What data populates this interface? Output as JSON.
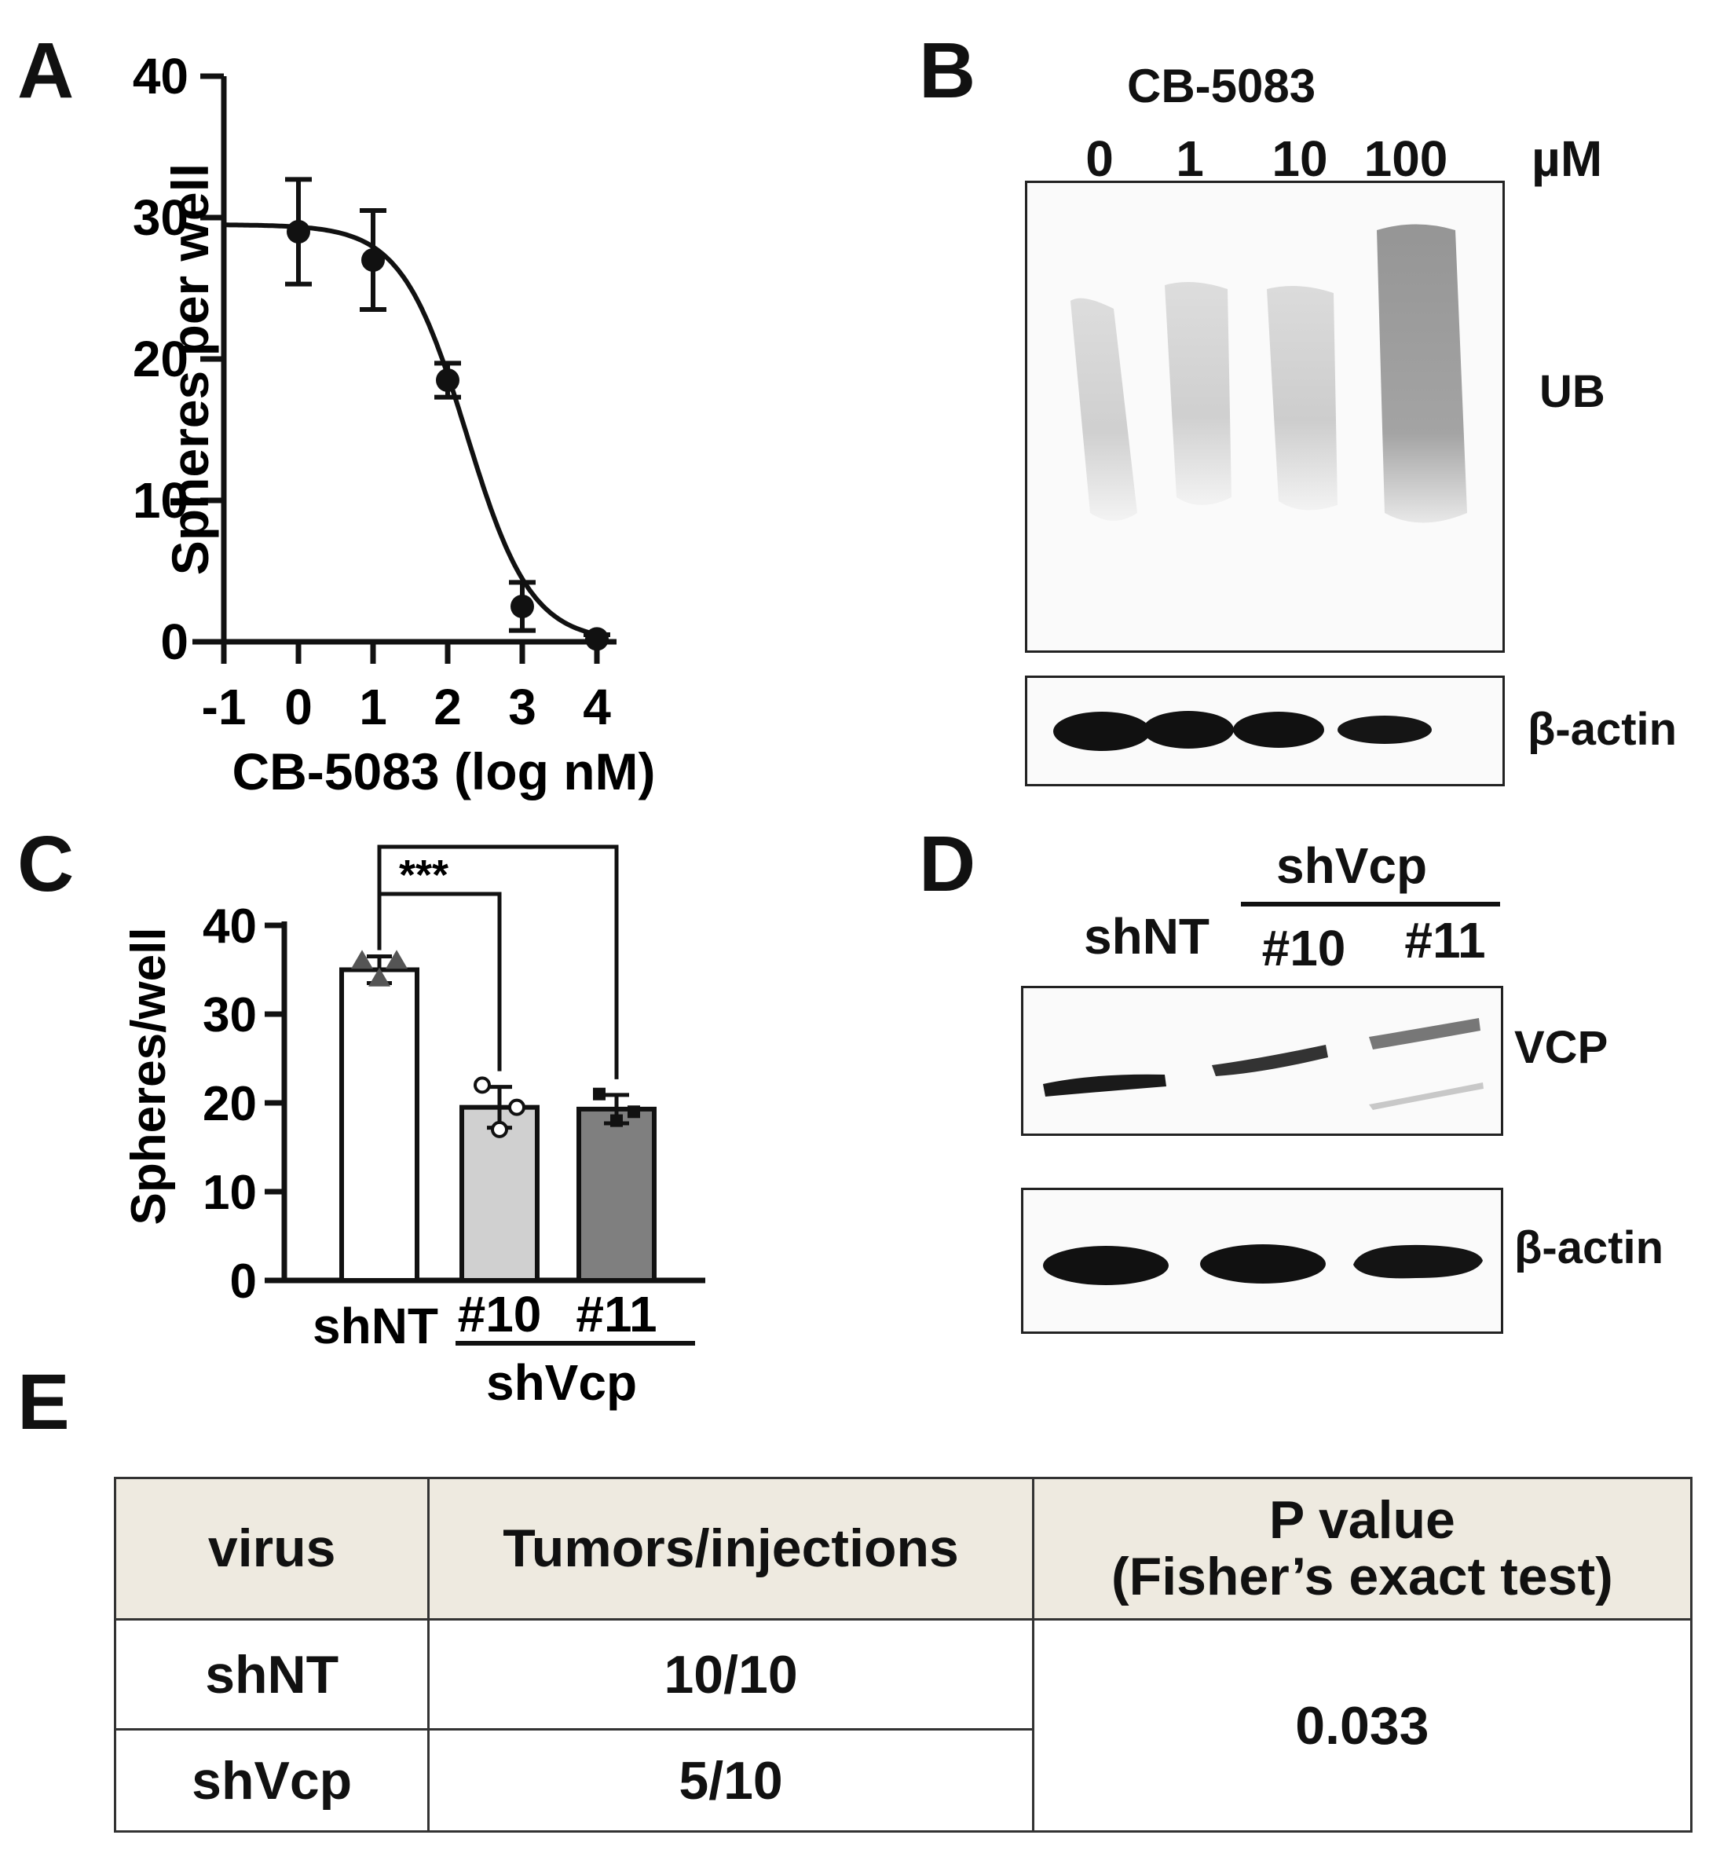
{
  "panels": {
    "a": "A",
    "b": "B",
    "c": "C",
    "d": "D",
    "e": "E"
  },
  "panel_b": {
    "drug": "CB-5083",
    "doses": [
      "0",
      "1",
      "10",
      "100"
    ],
    "unit": "µM",
    "band_labels": [
      "UB",
      "β-actin"
    ]
  },
  "panel_d": {
    "group_label": "shVcp",
    "lanes": [
      "shNT",
      "#10",
      "#11"
    ],
    "band_labels": [
      "VCP",
      "β-actin"
    ]
  },
  "table": {
    "headers": [
      "virus",
      "Tumors/injections",
      "P value",
      "(Fisher’s exact test)"
    ],
    "rows": [
      {
        "virus": "shNT",
        "ratio": "10/10"
      },
      {
        "virus": "shVcp",
        "ratio": "5/10"
      }
    ],
    "p_value": "0.033"
  },
  "chart_data": [
    {
      "type": "scatter",
      "panel": "A",
      "title": "",
      "xlabel": "CB-5083 (log nM)",
      "ylabel": "Spheres per well",
      "xlim": [
        -1,
        4
      ],
      "ylim": [
        0,
        40
      ],
      "xticks": [
        "-1",
        "0",
        "1",
        "2",
        "3",
        "4"
      ],
      "yticks": [
        "0",
        "10",
        "20",
        "30",
        "40"
      ],
      "points": [
        {
          "x": 0,
          "y": 29,
          "err": 3.7
        },
        {
          "x": 1,
          "y": 27,
          "err": 3.5
        },
        {
          "x": 2,
          "y": 18.5,
          "err": 1.2
        },
        {
          "x": 3,
          "y": 2.5,
          "err": 1.7
        },
        {
          "x": 4,
          "y": 0.2,
          "err": 0.3
        }
      ],
      "fit": {
        "model": "four-parameter logistic",
        "top": 29.5,
        "bottom": 0,
        "log_ic50": 2.25,
        "hill": 1.0
      }
    },
    {
      "type": "bar",
      "panel": "C",
      "title": "",
      "ylabel": "Spheres/well",
      "ylim": [
        0,
        40
      ],
      "yticks": [
        "0",
        "10",
        "20",
        "30",
        "40"
      ],
      "categories": [
        "shNT",
        "#10",
        "#11"
      ],
      "group_label": "shVcp",
      "values": [
        35,
        19.5,
        19.3
      ],
      "errors": [
        1.5,
        2.3,
        1.6
      ],
      "colors": [
        "#ffffff",
        "#d0d0d0",
        "#7f7f7f"
      ],
      "replicates": [
        [
          36,
          34,
          36
        ],
        [
          22,
          17,
          19.5
        ],
        [
          21,
          18,
          19
        ]
      ],
      "significance": [
        {
          "from": "shNT",
          "to": "#10",
          "label": "***"
        },
        {
          "from": "shNT",
          "to": "#11",
          "label": "***"
        }
      ]
    }
  ]
}
